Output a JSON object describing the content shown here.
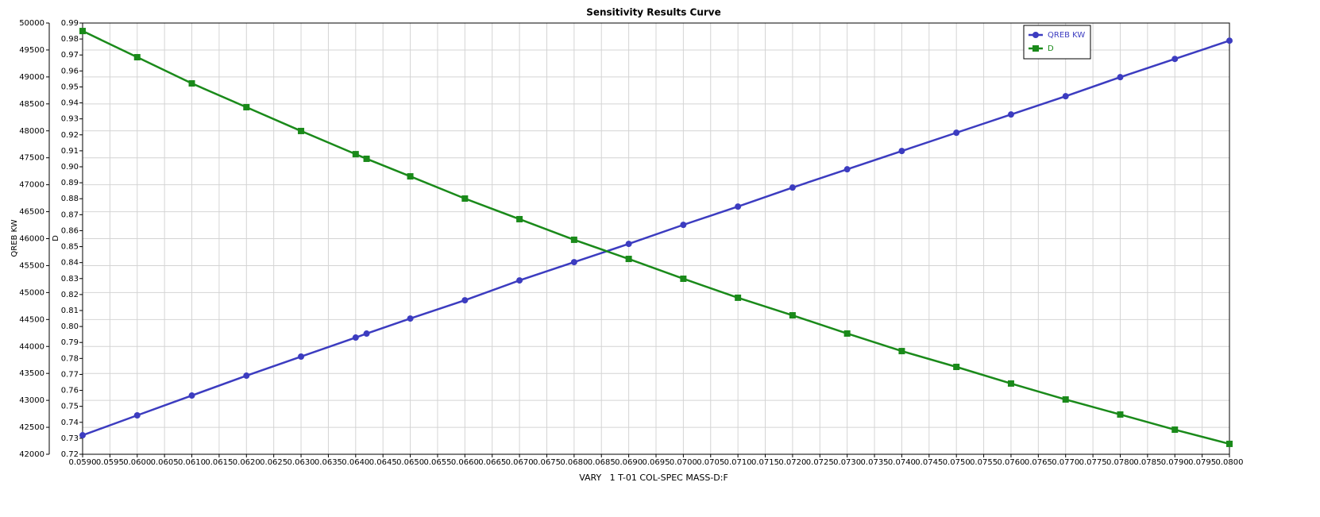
{
  "chart_data": {
    "type": "line",
    "title": "Sensitivity Results Curve",
    "x_label": "VARY   1 T-01 COL-SPEC MASS-D:F",
    "y_label": "QREB KW",
    "y2_label": "D",
    "x": [
      0.059,
      0.06,
      0.061,
      0.062,
      0.063,
      0.064,
      0.0642,
      0.065,
      0.066,
      0.067,
      0.068,
      0.069,
      0.07,
      0.071,
      0.072,
      0.073,
      0.074,
      0.075,
      0.076,
      0.077,
      0.078,
      0.079,
      0.08
    ],
    "series": [
      {
        "name": "QREB KW",
        "color": "#3c3cc0",
        "marker": "circle",
        "values": [
          42353,
          42722,
          43090,
          43458,
          43812,
          44165,
          44239,
          44518,
          44857,
          45225,
          45564,
          45903,
          46256,
          46595,
          46948,
          47287,
          47626,
          47965,
          48303,
          48642,
          48996,
          49334,
          49673
        ]
      },
      {
        "name": "D",
        "color": "#1a8a1a",
        "marker": "square",
        "axis": "y2",
        "values": [
          0.985,
          0.9686,
          0.9522,
          0.9373,
          0.9224,
          0.9079,
          0.905,
          0.894,
          0.8801,
          0.8672,
          0.8543,
          0.8423,
          0.8299,
          0.818,
          0.807,
          0.7956,
          0.7846,
          0.7747,
          0.7643,
          0.7543,
          0.7449,
          0.7354,
          0.7265
        ]
      }
    ],
    "xlim": [
      0.059,
      0.08
    ],
    "xticks": [
      {
        "value": 0.059,
        "label": "0.0590"
      },
      {
        "value": 0.0595,
        "label": "0.0595"
      },
      {
        "value": 0.06,
        "label": "0.0600"
      },
      {
        "value": 0.0605,
        "label": "0.0605"
      },
      {
        "value": 0.061,
        "label": "0.0610"
      },
      {
        "value": 0.0615,
        "label": "0.0615"
      },
      {
        "value": 0.062,
        "label": "0.0620"
      },
      {
        "value": 0.0625,
        "label": "0.0625"
      },
      {
        "value": 0.063,
        "label": "0.0630"
      },
      {
        "value": 0.0635,
        "label": "0.0635"
      },
      {
        "value": 0.064,
        "label": "0.0640"
      },
      {
        "value": 0.0645,
        "label": "0.0645"
      },
      {
        "value": 0.065,
        "label": "0.0650"
      },
      {
        "value": 0.0655,
        "label": "0.0655"
      },
      {
        "value": 0.066,
        "label": "0.0660"
      },
      {
        "value": 0.0665,
        "label": "0.0665"
      },
      {
        "value": 0.067,
        "label": "0.0670"
      },
      {
        "value": 0.0675,
        "label": "0.0675"
      },
      {
        "value": 0.068,
        "label": "0.0680"
      },
      {
        "value": 0.0685,
        "label": "0.0685"
      },
      {
        "value": 0.069,
        "label": "0.0690"
      },
      {
        "value": 0.0695,
        "label": "0.0695"
      },
      {
        "value": 0.07,
        "label": "0.0700"
      },
      {
        "value": 0.0705,
        "label": "0.0705"
      },
      {
        "value": 0.071,
        "label": "0.0710"
      },
      {
        "value": 0.0715,
        "label": "0.0715"
      },
      {
        "value": 0.072,
        "label": "0.0720"
      },
      {
        "value": 0.0725,
        "label": "0.0725"
      },
      {
        "value": 0.073,
        "label": "0.0730"
      },
      {
        "value": 0.0735,
        "label": "0.0735"
      },
      {
        "value": 0.074,
        "label": "0.0740"
      },
      {
        "value": 0.0745,
        "label": "0.0745"
      },
      {
        "value": 0.075,
        "label": "0.0750"
      },
      {
        "value": 0.0755,
        "label": "0.0755"
      },
      {
        "value": 0.076,
        "label": "0.0760"
      },
      {
        "value": 0.0765,
        "label": "0.0765"
      },
      {
        "value": 0.077,
        "label": "0.0770"
      },
      {
        "value": 0.0775,
        "label": "0.0775"
      },
      {
        "value": 0.078,
        "label": "0.0780"
      },
      {
        "value": 0.0785,
        "label": "0.0785"
      },
      {
        "value": 0.079,
        "label": "0.0790"
      },
      {
        "value": 0.0795,
        "label": "0.0795"
      },
      {
        "value": 0.08,
        "label": "0.0800"
      }
    ],
    "ylim": [
      42000,
      50000
    ],
    "yticks": [
      42000,
      42500,
      43000,
      43500,
      44000,
      44500,
      45000,
      45500,
      46000,
      46500,
      47000,
      47500,
      48000,
      48500,
      49000,
      49500,
      50000
    ],
    "y2lim": [
      0.72,
      0.99
    ],
    "y2ticks": [
      0.72,
      0.73,
      0.74,
      0.75,
      0.76,
      0.77,
      0.78,
      0.79,
      {
        "value": 0.8,
        "label": "0.80"
      },
      0.81,
      0.82,
      0.83,
      0.84,
      0.85,
      0.86,
      0.87,
      0.88,
      0.89,
      {
        "value": 0.9,
        "label": "0.90"
      },
      0.91,
      0.92,
      0.93,
      0.94,
      0.95,
      0.96,
      0.97,
      0.98,
      0.99
    ],
    "grid": true,
    "legend": "top-right"
  }
}
